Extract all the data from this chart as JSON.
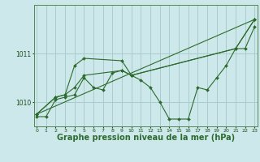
{
  "background_color": "#cce8ea",
  "grid_color": "#aacccc",
  "line_color": "#2d6a2d",
  "marker_color": "#2d6a2d",
  "xlabel": "Graphe pression niveau de la mer (hPa)",
  "xlabel_fontsize": 7,
  "xticks": [
    0,
    1,
    2,
    3,
    4,
    5,
    6,
    7,
    8,
    9,
    10,
    11,
    12,
    13,
    14,
    15,
    16,
    17,
    18,
    19,
    20,
    21,
    22,
    23
  ],
  "yticks": [
    1010,
    1011
  ],
  "ylim": [
    1009.5,
    1012.0
  ],
  "xlim": [
    -0.3,
    23.3
  ],
  "series": [
    {
      "x": [
        0,
        1,
        2,
        3,
        4,
        5,
        6,
        7,
        8,
        9,
        10,
        11,
        12,
        13,
        14,
        15,
        16,
        17,
        18,
        19,
        20,
        21,
        22,
        23
      ],
      "y": [
        1009.7,
        1009.7,
        1010.05,
        1010.1,
        1010.15,
        1010.5,
        1010.3,
        1010.25,
        1010.6,
        1010.65,
        1010.55,
        1010.45,
        1010.3,
        1010.0,
        1009.65,
        1009.65,
        1009.65,
        1010.3,
        1010.25,
        1010.5,
        1010.75,
        1011.1,
        1011.1,
        1011.55
      ]
    },
    {
      "x": [
        0,
        2,
        3,
        4,
        5,
        9,
        10,
        21,
        23
      ],
      "y": [
        1009.75,
        1010.1,
        1010.15,
        1010.75,
        1010.9,
        1010.85,
        1010.55,
        1011.1,
        1011.7
      ]
    },
    {
      "x": [
        0,
        2,
        3,
        4,
        5,
        9,
        10,
        21,
        23
      ],
      "y": [
        1009.75,
        1010.1,
        1010.15,
        1010.3,
        1010.55,
        1010.65,
        1010.55,
        1011.1,
        1011.7
      ]
    },
    {
      "x": [
        0,
        23
      ],
      "y": [
        1009.75,
        1011.7
      ]
    }
  ]
}
